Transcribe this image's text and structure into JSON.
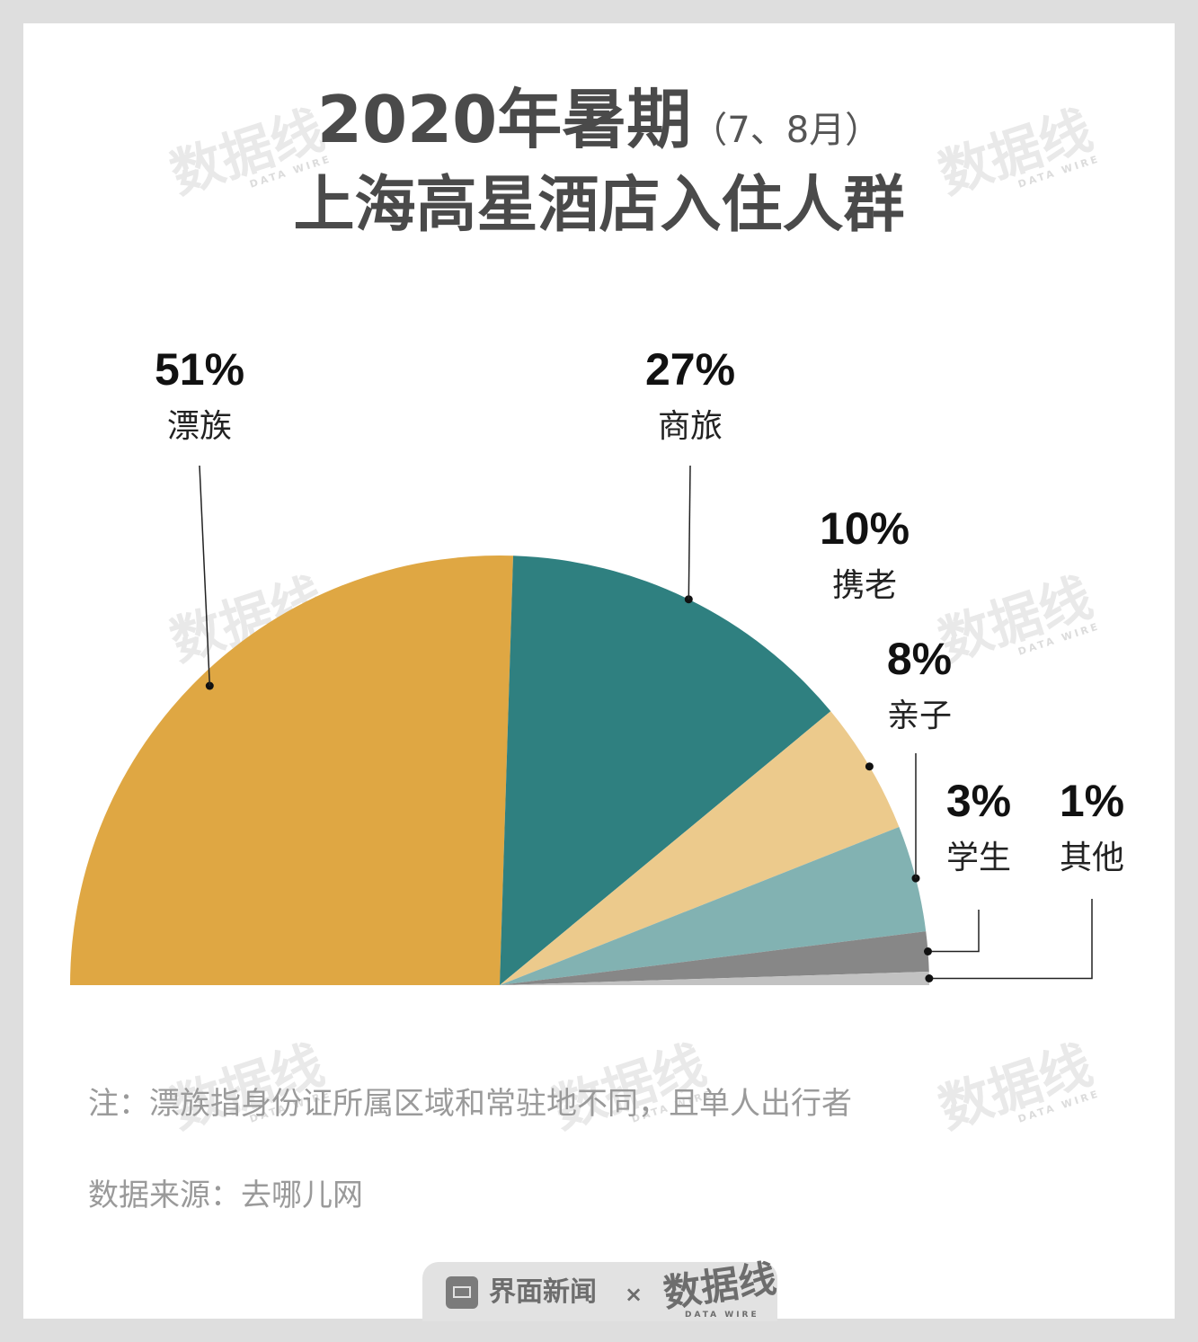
{
  "title": {
    "main": "2020年暑期",
    "sub": "（7、8月）",
    "line2": "上海高星酒店入住人群"
  },
  "watermark": {
    "text": "数据线",
    "sub": "DATA WIRE"
  },
  "chart_data": {
    "type": "pie",
    "layout": "half-pie",
    "title": "2020年暑期（7、8月）上海高星酒店入住人群",
    "slices": [
      {
        "label": "漂族",
        "value": 51,
        "value_label": "51%",
        "color": "#dfa743"
      },
      {
        "label": "商旅",
        "value": 27,
        "value_label": "27%",
        "color": "#2f8080"
      },
      {
        "label": "携老",
        "value": 10,
        "value_label": "10%",
        "color": "#ecca8c"
      },
      {
        "label": "亲子",
        "value": 8,
        "value_label": "8%",
        "color": "#82b2b2"
      },
      {
        "label": "学生",
        "value": 3,
        "value_label": "3%",
        "color": "#878787"
      },
      {
        "label": "其他",
        "value": 1,
        "value_label": "1%",
        "color": "#c2c2c2"
      }
    ]
  },
  "notes": {
    "note": "注：漂族指身份证所属区域和常驻地不同，且单人出行者",
    "source": "数据来源：去哪儿网"
  },
  "footer": {
    "brand": "界面新闻",
    "separator": "×",
    "partner": "数据线",
    "partner_sub": "DATA WIRE"
  }
}
